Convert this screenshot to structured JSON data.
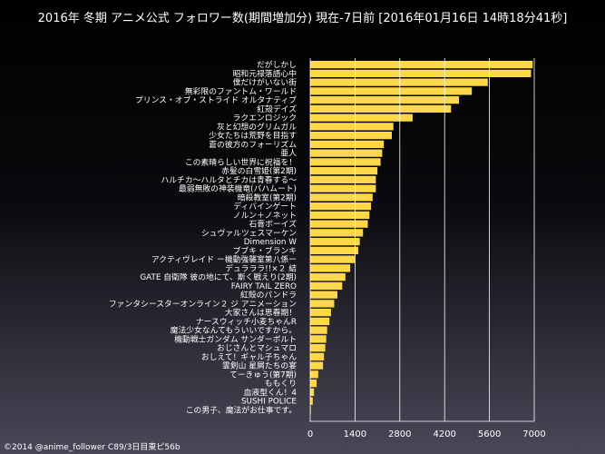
{
  "title": "2016年 冬期 アニメ公式 フォロワー数(期間増加分) 現在-7日前 [2016年01月16日 14時18分41秒]",
  "footer": "©2014 @anime_follower C89/3日目東ピ56b",
  "chart_data": {
    "type": "bar",
    "orientation": "horizontal",
    "bar_color": "#ffd84a",
    "xlim": [
      0,
      7000
    ],
    "xticks": [
      "0",
      "1400",
      "2800",
      "4200",
      "5600",
      "7000"
    ],
    "xtick_values": [
      0,
      1400,
      2800,
      4200,
      5600,
      7000
    ],
    "grid": true,
    "categories": [
      "だがしかし",
      "昭和元禄落語心中",
      "僕だけがいない街",
      "無彩限のファントム・ワールド",
      "プリンス・オブ・ストライド オルタナティブ",
      "紅殻デイズ",
      "ラクエンロジック",
      "灰と幻想のグリムガル",
      "少女たちは荒野を目指す",
      "蒼の彼方のフォーリズム",
      "亜人",
      "この素晴らしい世界に祝福を！",
      "赤髪の白雪姫(第2期)",
      "ハルチカ～ハルタとチカは青春する～",
      "最弱無敗の神装機竜(バハムート)",
      "暗殺教室(第2期)",
      "ディバインゲート",
      "ノルン＋ノネット",
      "石膏ボーイズ",
      "シュヴァルツェスマーケン",
      "Dimension W",
      "ブブキ・ブランキ",
      "アクティヴレイド ー機動強襲室第八係ー",
      "デュラララ!!×２ 結",
      "GATE 自衛隊 彼の地にて、斯く戦えり(2期)",
      "FAIRY TAIL ZERO",
      "紅殻のパンドラ",
      "ファンタシースターオンライン２ ジ アニメーション",
      "大家さんは思春期！",
      "ナースウィッチ小麦ちゃんR",
      "魔法少女なんてもういいですから。",
      "機動戦士ガンダム サンダーボルト",
      "おじさんとマシュマロ",
      "おしえて！ギャル子ちゃん",
      "霊剣山 星屑たちの宴",
      "てーきゅう(第7期)",
      "ももくり",
      "血液型くん！4",
      "SUSHI POLICE",
      "この男子、魔法がお仕事です。"
    ],
    "values": [
      6950,
      6900,
      5550,
      5050,
      4650,
      4400,
      3200,
      2600,
      2550,
      2300,
      2250,
      2200,
      2100,
      2050,
      2050,
      1950,
      1900,
      1850,
      1800,
      1650,
      1550,
      1500,
      1400,
      1250,
      1100,
      1000,
      850,
      750,
      650,
      600,
      530,
      500,
      470,
      430,
      400,
      250,
      200,
      120,
      80,
      20
    ]
  }
}
